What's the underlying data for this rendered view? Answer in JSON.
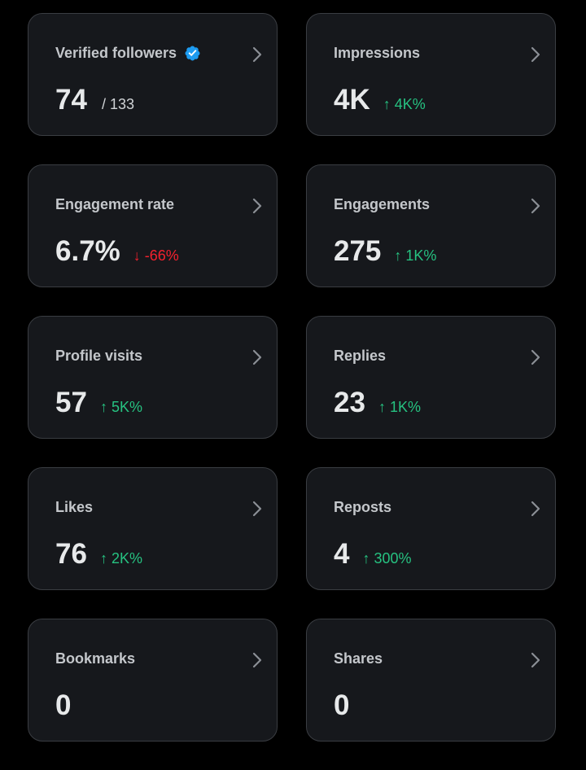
{
  "colors": {
    "background": "#000000",
    "card_background": "#16181c",
    "card_border": "#3a3d42",
    "positive": "#26c281",
    "negative": "#f4212e",
    "verified": "#1d9bf0"
  },
  "cards": [
    {
      "title": "Verified followers",
      "value": "74",
      "sub_value": "/ 133",
      "verified_icon": "verified-badge-icon"
    },
    {
      "title": "Impressions",
      "value": "4K",
      "change": "4K%",
      "direction": "up"
    },
    {
      "title": "Engagement rate",
      "value": "6.7%",
      "change": "-66%",
      "direction": "down"
    },
    {
      "title": "Engagements",
      "value": "275",
      "change": "1K%",
      "direction": "up"
    },
    {
      "title": "Profile visits",
      "value": "57",
      "change": "5K%",
      "direction": "up"
    },
    {
      "title": "Replies",
      "value": "23",
      "change": "1K%",
      "direction": "up"
    },
    {
      "title": "Likes",
      "value": "76",
      "change": "2K%",
      "direction": "up"
    },
    {
      "title": "Reposts",
      "value": "4",
      "change": "300%",
      "direction": "up"
    },
    {
      "title": "Bookmarks",
      "value": "0"
    },
    {
      "title": "Shares",
      "value": "0"
    }
  ],
  "icons": {
    "chevron": "chevron-right-icon",
    "up_arrow": "↑",
    "down_arrow": "↓"
  }
}
